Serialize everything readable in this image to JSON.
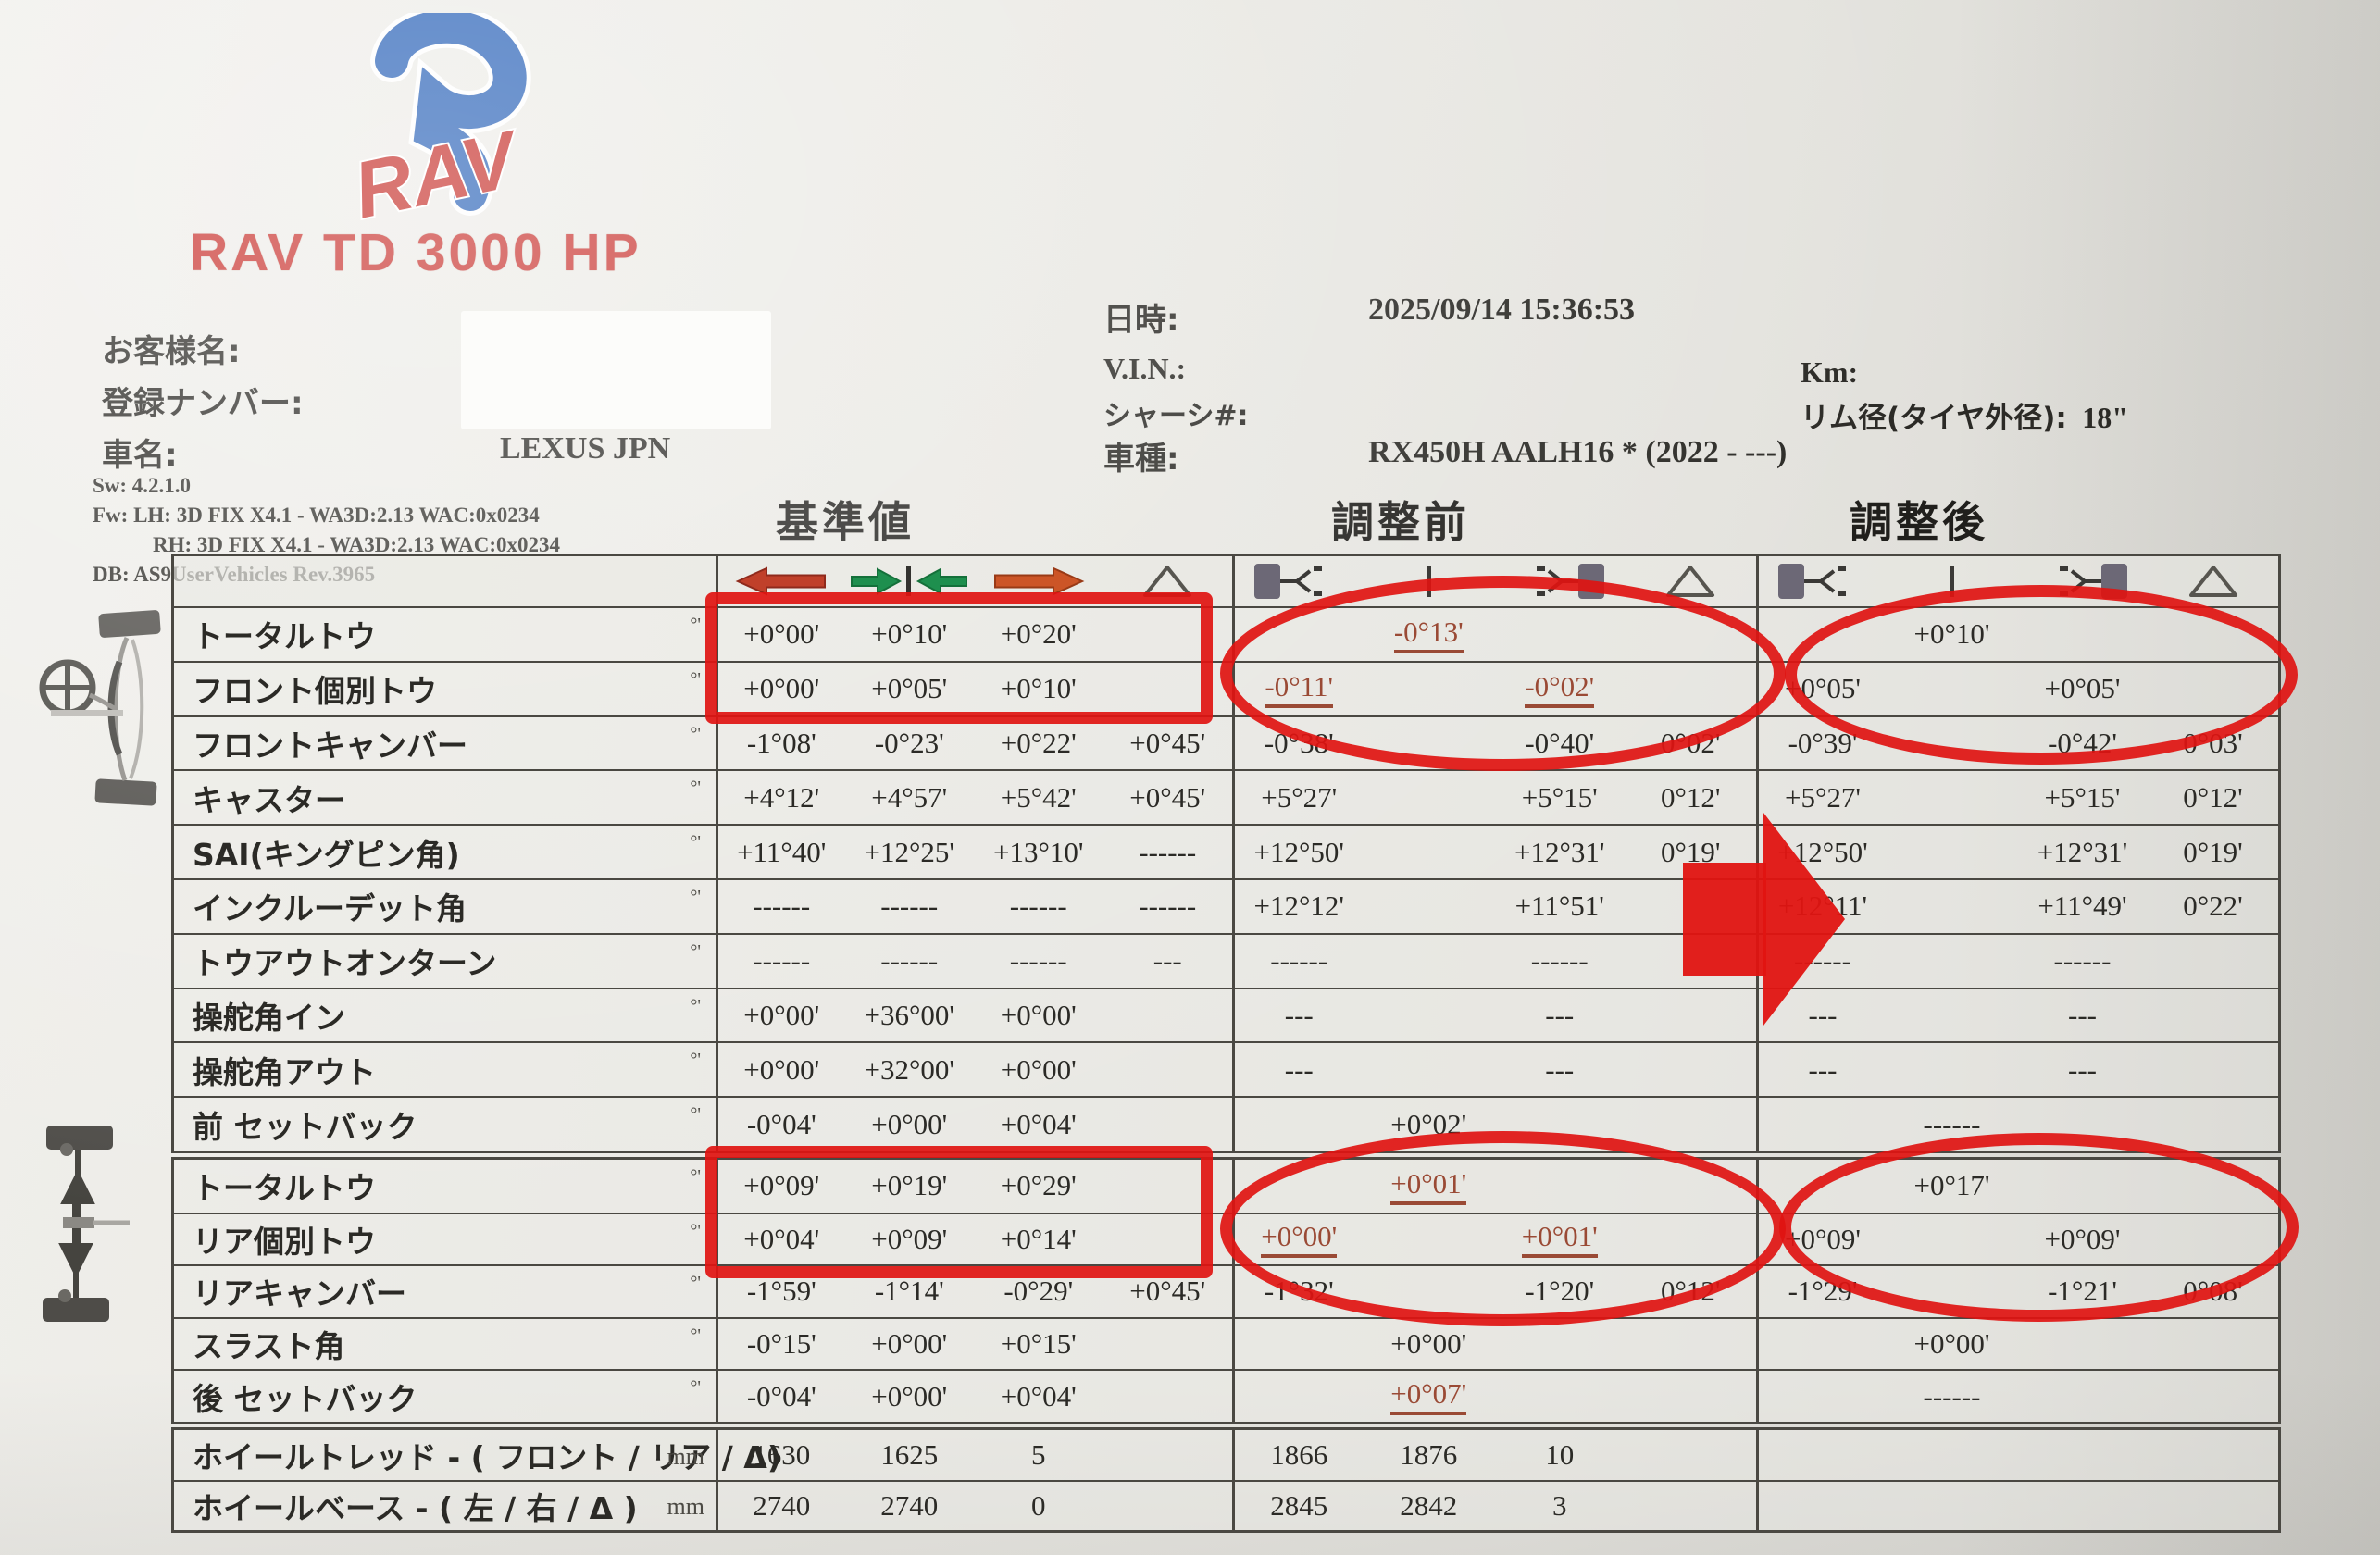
{
  "report": {
    "machine_title": "RAV TD 3000 HP",
    "customer": {
      "name_label": "お客様名:",
      "registration_label": "登録ナンバー:",
      "car_label": "車名:",
      "car_value": "LEXUS JPN"
    },
    "meta": {
      "date_label": "日時:",
      "date_value": "2025/09/14  15:36:53",
      "vin_label": "V.I.N.:",
      "chassis_label": "シャーシ#:",
      "model_label": "車種:",
      "model_value": "RX450H AALH16 * (2022 - ---)",
      "km_label": "Km:",
      "rim_label": "リム径(タイヤ外径):",
      "rim_value": "18\""
    },
    "system": {
      "sw": "Sw:   4.2.1.0",
      "fw1": "Fw:   LH: 3D FIX X4.1 - WA3D:2.13 WAC:0x0234",
      "fw2": "RH: 3D FIX X4.1 - WA3D:2.13 WAC:0x0234",
      "db": "DB:   AS9UserVehicles Rev.3965"
    },
    "sections": {
      "standard": "基準値",
      "before": "調整前",
      "after": "調整後"
    }
  },
  "table": {
    "rows": [
      {
        "g": "front",
        "label": "トータルトウ",
        "u": "°'",
        "cells": [
          "+0°00'",
          "+0°10'",
          "+0°20'",
          "",
          "",
          {
            "t": "-0°13'",
            "r": 1
          },
          "",
          "",
          "",
          "+0°10'",
          "",
          ""
        ]
      },
      {
        "g": "front",
        "label": "フロント個別トウ",
        "u": "°'",
        "cells": [
          "+0°00'",
          "+0°05'",
          "+0°10'",
          "",
          {
            "t": "-0°11'",
            "r": 1
          },
          "",
          {
            "t": "-0°02'",
            "r": 1
          },
          "",
          "+0°05'",
          "",
          "+0°05'",
          ""
        ]
      },
      {
        "g": "front",
        "label": "フロントキャンバー",
        "u": "°'",
        "cells": [
          "-1°08'",
          "-0°23'",
          "+0°22'",
          "+0°45'",
          "-0°38'",
          "",
          "-0°40'",
          "0°02'",
          "-0°39'",
          "",
          "-0°42'",
          "0°03'"
        ]
      },
      {
        "g": "front",
        "label": "キャスター",
        "u": "°'",
        "cells": [
          "+4°12'",
          "+4°57'",
          "+5°42'",
          "+0°45'",
          "+5°27'",
          "",
          "+5°15'",
          "0°12'",
          "+5°27'",
          "",
          "+5°15'",
          "0°12'"
        ]
      },
      {
        "g": "front",
        "label": "SAI(キングピン角)",
        "u": "°'",
        "cells": [
          "+11°40'",
          "+12°25'",
          "+13°10'",
          "------",
          "+12°50'",
          "",
          "+12°31'",
          "0°19'",
          "+12°50'",
          "",
          "+12°31'",
          "0°19'"
        ]
      },
      {
        "g": "front",
        "label": "インクルーデット角",
        "u": "°'",
        "cells": [
          "------",
          "------",
          "------",
          "------",
          "+12°12'",
          "",
          "+11°51'",
          "",
          "+12°11'",
          "",
          "+11°49'",
          "0°22'"
        ]
      },
      {
        "g": "front",
        "label": "トウアウトオンターン",
        "u": "°'",
        "cells": [
          "------",
          "------",
          "------",
          "---",
          "------",
          "",
          "------",
          "",
          "------",
          "",
          "------",
          ""
        ]
      },
      {
        "g": "front",
        "label": "操舵角イン",
        "u": "°'",
        "cells": [
          "+0°00'",
          "+36°00'",
          "+0°00'",
          "",
          "---",
          "",
          "---",
          "",
          "---",
          "",
          "---",
          ""
        ]
      },
      {
        "g": "front",
        "label": "操舵角アウト",
        "u": "°'",
        "cells": [
          "+0°00'",
          "+32°00'",
          "+0°00'",
          "",
          "---",
          "",
          "---",
          "",
          "---",
          "",
          "---",
          ""
        ]
      },
      {
        "g": "front",
        "label": "前 セットバック",
        "u": "°'",
        "cells": [
          "-0°04'",
          "+0°00'",
          "+0°04'",
          "",
          "",
          "+0°02'",
          "",
          "",
          "",
          "------",
          "",
          ""
        ]
      },
      {
        "g": "rear",
        "label": "トータルトウ",
        "u": "°'",
        "cells": [
          "+0°09'",
          "+0°19'",
          "+0°29'",
          "",
          "",
          {
            "t": "+0°01'",
            "r": 1
          },
          "",
          "",
          "",
          "+0°17'",
          "",
          ""
        ]
      },
      {
        "g": "rear",
        "label": "リア個別トウ",
        "u": "°'",
        "cells": [
          "+0°04'",
          "+0°09'",
          "+0°14'",
          "",
          {
            "t": "+0°00'",
            "r": 1
          },
          "",
          {
            "t": "+0°01'",
            "r": 1
          },
          "",
          "+0°09'",
          "",
          "+0°09'",
          ""
        ]
      },
      {
        "g": "rear",
        "label": "リアキャンバー",
        "u": "°'",
        "cells": [
          "-1°59'",
          "-1°14'",
          "-0°29'",
          "+0°45'",
          "-1°32'",
          "",
          "-1°20'",
          "0°12'",
          "-1°29'",
          "",
          "-1°21'",
          "0°08'"
        ]
      },
      {
        "g": "rear",
        "label": "スラスト角",
        "u": "°'",
        "cells": [
          "-0°15'",
          "+0°00'",
          "+0°15'",
          "",
          "",
          "+0°00'",
          "",
          "",
          "",
          "+0°00'",
          "",
          ""
        ]
      },
      {
        "g": "rear",
        "label": "後 セットバック",
        "u": "°'",
        "cells": [
          "-0°04'",
          "+0°00'",
          "+0°04'",
          "",
          "",
          {
            "t": "+0°07'",
            "r": 1
          },
          "",
          "",
          "",
          "------",
          "",
          ""
        ]
      },
      {
        "g": "bottom",
        "label": "ホイールトレッド - ( フロント / リア / Δ)",
        "u": "mm",
        "cells": [
          "1630",
          "1625",
          "5",
          "",
          "1866",
          "1876",
          "10",
          "",
          "",
          "",
          "",
          ""
        ]
      },
      {
        "g": "bottom",
        "label": "ホイールベース - ( 左 / 右 / Δ )",
        "u": "mm",
        "cells": [
          "2740",
          "2740",
          "0",
          "",
          "2845",
          "2842",
          "3",
          "",
          "",
          "",
          "",
          ""
        ]
      }
    ]
  }
}
